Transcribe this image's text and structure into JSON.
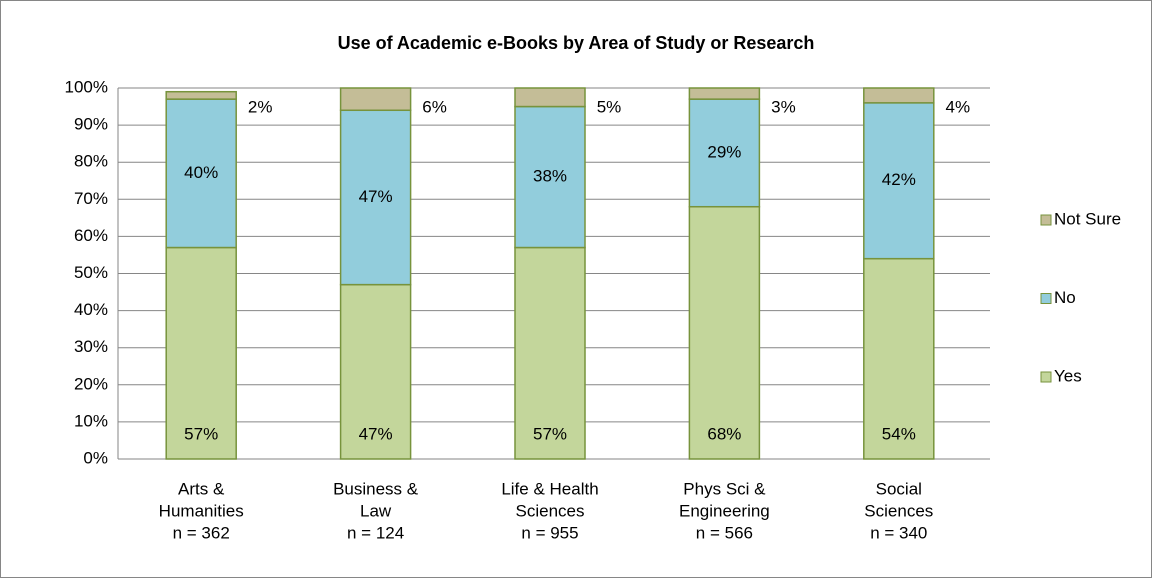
{
  "chart_data": {
    "type": "stacked_bar",
    "title": "Use of Academic e-Books by Area of Study or Research",
    "categories": [
      [
        "Arts &",
        "Humanities",
        "n = 362"
      ],
      [
        "Business &",
        "Law",
        "n = 124"
      ],
      [
        "Life & Health",
        "Sciences",
        "n = 955"
      ],
      [
        "Phys Sci &",
        "Engineering",
        "n = 566"
      ],
      [
        "Social",
        "Sciences",
        "n = 340"
      ]
    ],
    "series": [
      {
        "name": "Yes",
        "color": "#c3d69b",
        "values": [
          57,
          47,
          57,
          68,
          54
        ],
        "value_labels": [
          "57%",
          "47%",
          "57%",
          "68%",
          "54%"
        ]
      },
      {
        "name": "No",
        "color": "#92cddc",
        "values": [
          40,
          47,
          38,
          29,
          42
        ],
        "value_labels": [
          "40%",
          "47%",
          "38%",
          "29%",
          "42%"
        ]
      },
      {
        "name": "Not Sure",
        "color": "#c4bd97",
        "values": [
          2,
          6,
          5,
          3,
          4
        ],
        "value_labels": [
          "2%",
          "6%",
          "5%",
          "3%",
          "4%"
        ]
      }
    ],
    "ylim": [
      0,
      100
    ],
    "yticks": [
      {
        "value": 0,
        "label": "0%"
      },
      {
        "value": 10,
        "label": "10%"
      },
      {
        "value": 20,
        "label": "20%"
      },
      {
        "value": 30,
        "label": "30%"
      },
      {
        "value": 40,
        "label": "40%"
      },
      {
        "value": 50,
        "label": "50%"
      },
      {
        "value": 60,
        "label": "60%"
      },
      {
        "value": 70,
        "label": "70%"
      },
      {
        "value": 80,
        "label": "80%"
      },
      {
        "value": 90,
        "label": "90%"
      },
      {
        "value": 100,
        "label": "100%"
      }
    ],
    "grid": true,
    "legend": "right"
  }
}
